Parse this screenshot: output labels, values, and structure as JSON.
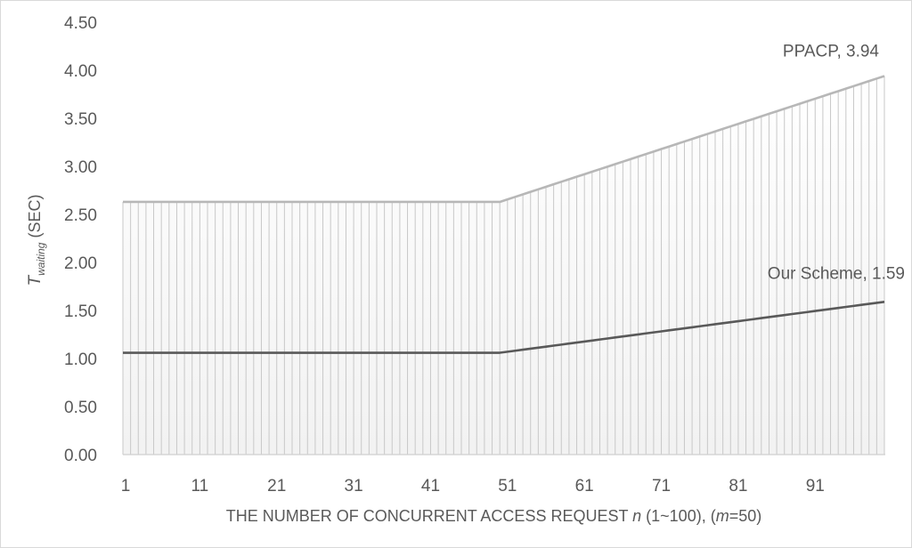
{
  "chart_data": {
    "type": "line",
    "title": "",
    "xlabel": {
      "parts": [
        {
          "text": "THE NUMBER OF CONCURRENT ACCESS REQUEST ",
          "italic": false
        },
        {
          "text": "n",
          "italic": true
        },
        {
          "text": " (1~100), (",
          "italic": false
        },
        {
          "text": "m",
          "italic": true
        },
        {
          "text": "=50)",
          "italic": false
        }
      ]
    },
    "ylabel": {
      "main": "T",
      "sub": "waiting",
      "unit": "(SEC)"
    },
    "ylim": [
      0,
      4.5
    ],
    "yticks": [
      "0.00",
      "0.50",
      "1.00",
      "1.50",
      "2.00",
      "2.50",
      "3.00",
      "3.50",
      "4.00",
      "4.50"
    ],
    "xlim": [
      1,
      100
    ],
    "xticks": [
      "1",
      "11",
      "21",
      "31",
      "41",
      "51",
      "61",
      "71",
      "81",
      "91"
    ],
    "grid": false,
    "drop_lines": true,
    "series": [
      {
        "name": "PPACP",
        "color": "#b7b7b7",
        "flat_value": 2.63,
        "flat_until": 50,
        "end_value": 3.94,
        "annotation": "PPACP, 3.94"
      },
      {
        "name": "Our Scheme",
        "color": "#595959",
        "flat_value": 1.06,
        "flat_until": 50,
        "end_value": 1.59,
        "annotation": "Our Scheme, 1.59"
      }
    ]
  }
}
